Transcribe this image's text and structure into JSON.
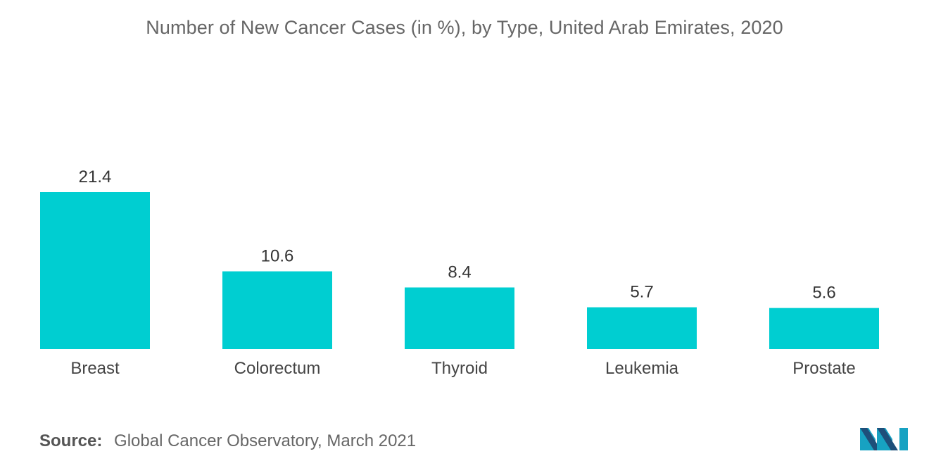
{
  "title": "Number of New Cancer Cases (in %), by Type, United Arab Emirates, 2020",
  "footer": {
    "source_label": "Source:",
    "source_text": "Global Cancer Observatory, March 2021"
  },
  "logo": {
    "icon": "mordor-intelligence-logo-icon",
    "colors": [
      "#1e4f7a",
      "#17a2c2"
    ]
  },
  "chart_data": {
    "type": "bar",
    "title": "Number of New Cancer Cases (in %), by Type, United Arab Emirates, 2020",
    "xlabel": "",
    "ylabel": "",
    "categories": [
      "Breast",
      "Colorectum",
      "Thyroid",
      "Leukemia",
      "Prostate"
    ],
    "values": [
      21.4,
      10.6,
      8.4,
      5.7,
      5.6
    ],
    "value_labels": [
      "21.4",
      "10.6",
      "8.4",
      "5.7",
      "5.6"
    ],
    "ylim": [
      0,
      21.4
    ],
    "grid": false,
    "legend": "none",
    "bar_color": "#00ced1"
  }
}
